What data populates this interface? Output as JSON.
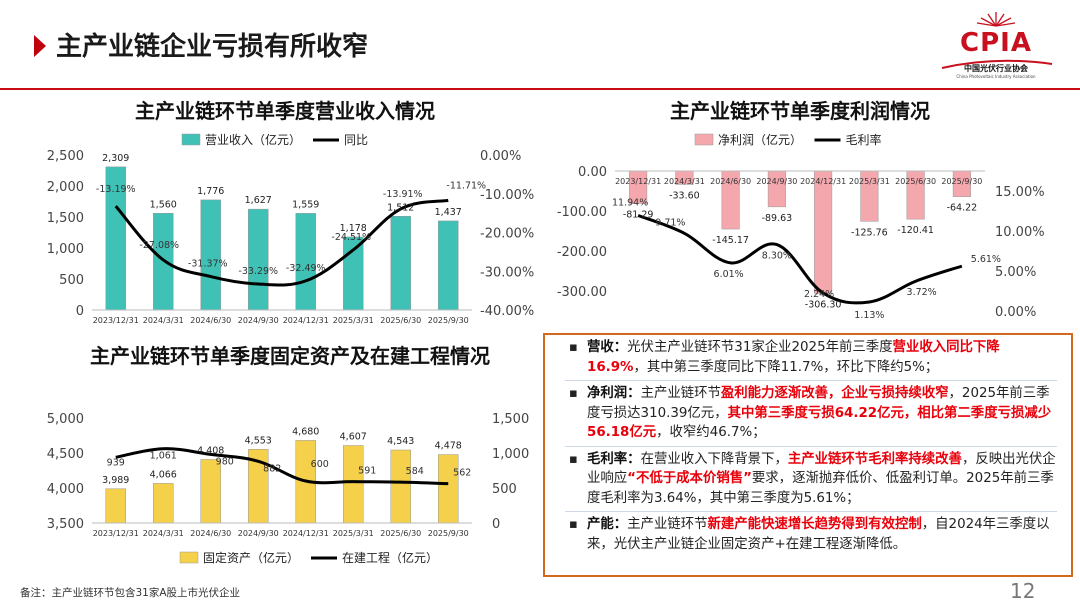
{
  "header": {
    "title": "主产业链企业亏损有所收窄",
    "logo_text": "CPIA",
    "logo_cn": "中国光伏行业协会",
    "logo_en": "China Photovoltaic Industry Association"
  },
  "chart_data": [
    {
      "id": "revenue",
      "type": "bar+line",
      "title": "主产业链环节单季度营业收入情况",
      "categories": [
        "2023/12/31",
        "2024/3/31",
        "2024/6/30",
        "2024/9/30",
        "2024/12/31",
        "2025/3/31",
        "2025/6/30",
        "2025/9/30"
      ],
      "bar_series": {
        "name": "营业收入（亿元）",
        "values": [
          2309,
          1560,
          1776,
          1627,
          1559,
          1178,
          1512,
          1437
        ],
        "labels": [
          "2,309",
          "1,560",
          "1,776",
          "1,627",
          "1,559",
          "1,178",
          "1,512",
          "1,437"
        ],
        "color": "#3fc1b6"
      },
      "line_series": {
        "name": "同比",
        "values": [
          -13.19,
          -27.08,
          -31.37,
          -33.29,
          -32.49,
          -24.51,
          -13.91,
          -11.71
        ],
        "labels": [
          "-13.19%",
          "-27.08%",
          "-31.37%",
          "-33.29%",
          "-32.49%",
          "-24.51%",
          "-13.91%",
          "-11.71%"
        ],
        "color": "#000000"
      },
      "y_left": {
        "min": 0,
        "max": 2500,
        "ticks": [
          0,
          500,
          1000,
          1500,
          2000,
          2500
        ],
        "tick_labels": [
          "0",
          "500",
          "1,000",
          "1,500",
          "2,000",
          "2,500"
        ]
      },
      "y_right": {
        "min": -40,
        "max": 0,
        "ticks": [
          0,
          -10,
          -20,
          -30,
          -40
        ],
        "tick_labels": [
          "0.00%",
          "-10.00%",
          "-20.00%",
          "-30.00%",
          "-40.00%"
        ]
      },
      "legend": "top",
      "grid": false
    },
    {
      "id": "profit",
      "type": "bar+line",
      "title": "主产业链环节单季度利润情况",
      "categories": [
        "2023/12/31",
        "2024/3/31",
        "2024/6/30",
        "2024/9/30",
        "2024/12/31",
        "2025/3/31",
        "2025/6/30",
        "2025/9/30"
      ],
      "bar_series": {
        "name": "净利润（亿元）",
        "values": [
          -81.29,
          -33.6,
          -145.17,
          -89.63,
          -306.3,
          -125.76,
          -120.41,
          -64.22
        ],
        "labels": [
          "-81.29",
          "-33.60",
          "-145.17",
          "-89.63",
          "-306.30",
          "-125.76",
          "-120.41",
          "-64.22"
        ],
        "color": "#f4a7ad"
      },
      "line_series": {
        "name": "毛利率",
        "values": [
          11.94,
          9.71,
          6.01,
          8.3,
          2.24,
          1.13,
          3.72,
          5.61
        ],
        "labels": [
          "11.94%",
          "9.71%",
          "6.01%",
          "8.30%",
          "2.24%",
          "1.13%",
          "3.72%",
          "5.61%"
        ],
        "color": "#000000"
      },
      "y_left": {
        "min": -350,
        "max": 0,
        "ticks": [
          0,
          -100,
          -200,
          -300
        ],
        "tick_labels": [
          "0.00",
          "-100.00",
          "-200.00",
          "-300.00"
        ]
      },
      "y_right": {
        "min": 0,
        "max": 17.5,
        "ticks": [
          0,
          5,
          10,
          15
        ],
        "tick_labels": [
          "0.00%",
          "5.00%",
          "10.00%",
          "15.00%"
        ]
      },
      "legend": "top",
      "grid": false
    },
    {
      "id": "assets",
      "type": "bar+line",
      "title": "主产业链环节单季度固定资产及在建工程情况",
      "categories": [
        "2023/12/31",
        "2024/3/31",
        "2024/6/30",
        "2024/9/30",
        "2024/12/31",
        "2025/3/31",
        "2025/6/30",
        "2025/9/30"
      ],
      "bar_series": {
        "name": "固定资产（亿元）",
        "values": [
          3989,
          4066,
          4408,
          4553,
          4680,
          4607,
          4543,
          4478
        ],
        "labels": [
          "3,989",
          "4,066",
          "4,408",
          "4,553",
          "4,680",
          "4,607",
          "4,543",
          "4,478"
        ],
        "color": "#f5d04a"
      },
      "line_series": {
        "name": "在建工程（亿元）",
        "values": [
          939,
          1061,
          980,
          882,
          600,
          591,
          584,
          562
        ],
        "labels": [
          "939",
          "1,061",
          "980",
          "882",
          "600",
          "591",
          "584",
          "562"
        ],
        "color": "#000000"
      },
      "y_left": {
        "min": 3500,
        "max": 5000,
        "ticks": [
          3500,
          4000,
          4500,
          5000
        ],
        "tick_labels": [
          "3,500",
          "4,000",
          "4,500",
          "5,000"
        ]
      },
      "y_right": {
        "min": 0,
        "max": 1500,
        "ticks": [
          0,
          500,
          1000,
          1500
        ],
        "tick_labels": [
          "0",
          "500",
          "1,000",
          "1,500"
        ]
      },
      "legend": "bottom",
      "grid": false
    }
  ],
  "summary": {
    "bullet_symbol": "▪",
    "items": [
      {
        "lead": "营收：",
        "segments": [
          {
            "text": "光伏主产业链环节31家企业2025年前三季度",
            "hl": false
          },
          {
            "text": "营业收入同比下降16.9%",
            "hl": true
          },
          {
            "text": "，其中第三季度同比下降11.7%，环比下降约5%；",
            "hl": false
          }
        ]
      },
      {
        "lead": "净利润：",
        "segments": [
          {
            "text": "主产业链环节",
            "hl": false
          },
          {
            "text": "盈利能力逐渐改善，企业亏损持续收窄",
            "hl": true
          },
          {
            "text": "，2025年前三季度亏损达310.39亿元，",
            "hl": false
          },
          {
            "text": "其中第三季度亏损64.22亿元，相比第二季度亏损减少56.18亿元",
            "hl": true
          },
          {
            "text": "，收窄约46.7%；",
            "hl": false
          }
        ]
      },
      {
        "lead": "毛利率：",
        "segments": [
          {
            "text": "在营业收入下降背景下，",
            "hl": false
          },
          {
            "text": "主产业链环节毛利率持续改善",
            "hl": true
          },
          {
            "text": "，反映出光伏企业响应",
            "hl": false
          },
          {
            "text": "“不低于成本价销售”",
            "hl": true
          },
          {
            "text": "要求，逐渐抛弃低价、低盈利订单。2025年前三季度毛利率为3.64%，其中第三季度为5.61%；",
            "hl": false
          }
        ]
      },
      {
        "lead": "产能：",
        "segments": [
          {
            "text": "主产业链环节",
            "hl": false
          },
          {
            "text": "新建产能快速增长趋势得到有效控制",
            "hl": true
          },
          {
            "text": "，自2024年三季度以来，光伏主产业链企业固定资产+在建工程逐渐降低。",
            "hl": false
          }
        ]
      }
    ]
  },
  "footer": {
    "note": "备注：主产业链环节包含31家A股上市光伏企业",
    "page_number": "12"
  }
}
